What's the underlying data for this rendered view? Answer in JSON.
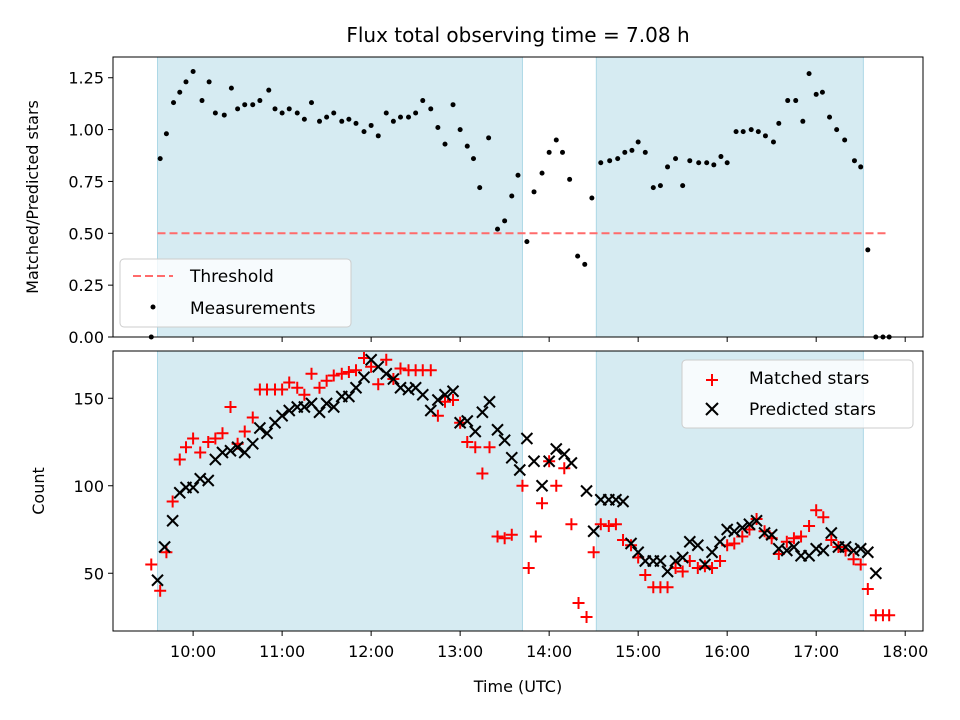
{
  "chart_data": [
    {
      "type": "scatter",
      "title": "Flux total observing time = 7.08 h",
      "xlabel": "",
      "ylabel": "Matched/Predicted stars",
      "x_unit": "hours (UTC)",
      "xlim": [
        9.1,
        18.2
      ],
      "ylim": [
        0,
        1.35
      ],
      "yticks": [
        0.0,
        0.25,
        0.5,
        0.75,
        1.0,
        1.25
      ],
      "ytick_labels": [
        "0.00",
        "0.25",
        "0.50",
        "0.75",
        "1.00",
        "1.25"
      ],
      "shaded_spans": [
        {
          "start": 9.6,
          "end": 13.7,
          "color": "#add8e6"
        },
        {
          "start": 14.53,
          "end": 17.53,
          "color": "#add8e6"
        }
      ],
      "legend": {
        "location": "lower-left",
        "entries": [
          "Threshold",
          "Measurements"
        ]
      },
      "series": [
        {
          "name": "Threshold",
          "kind": "dashed-line",
          "color": "#ff6b6b",
          "x": [
            9.6,
            17.8
          ],
          "y": [
            0.5,
            0.5
          ]
        },
        {
          "name": "Measurements",
          "kind": "dots",
          "color": "#000000",
          "x": [
            9.53,
            9.63,
            9.7,
            9.78,
            9.85,
            9.92,
            10.0,
            10.1,
            10.18,
            10.25,
            10.35,
            10.43,
            10.5,
            10.58,
            10.67,
            10.75,
            10.85,
            10.92,
            11.0,
            11.08,
            11.17,
            11.25,
            11.33,
            11.42,
            11.5,
            11.58,
            11.67,
            11.75,
            11.83,
            11.92,
            12.0,
            12.08,
            12.17,
            12.25,
            12.33,
            12.42,
            12.5,
            12.58,
            12.67,
            12.75,
            12.83,
            12.92,
            13.0,
            13.08,
            13.15,
            13.22,
            13.32,
            13.42,
            13.5,
            13.58,
            13.65,
            13.75,
            13.83,
            13.92,
            14.0,
            14.08,
            14.15,
            14.23,
            14.32,
            14.4,
            14.48,
            14.58,
            14.68,
            14.77,
            14.85,
            14.93,
            15.0,
            15.08,
            15.17,
            15.25,
            15.33,
            15.42,
            15.5,
            15.58,
            15.68,
            15.77,
            15.85,
            15.93,
            16.0,
            16.1,
            16.18,
            16.27,
            16.35,
            16.43,
            16.52,
            16.58,
            16.68,
            16.77,
            16.85,
            16.92,
            17.0,
            17.07,
            17.15,
            17.23,
            17.32,
            17.43,
            17.5,
            17.58,
            17.67,
            17.75,
            17.82
          ],
          "y": [
            0.0,
            0.86,
            0.98,
            1.13,
            1.18,
            1.23,
            1.28,
            1.14,
            1.23,
            1.08,
            1.07,
            1.2,
            1.1,
            1.12,
            1.12,
            1.14,
            1.19,
            1.1,
            1.08,
            1.1,
            1.08,
            1.05,
            1.13,
            1.04,
            1.06,
            1.08,
            1.04,
            1.05,
            1.03,
            0.99,
            1.02,
            0.97,
            1.08,
            1.04,
            1.06,
            1.06,
            1.08,
            1.14,
            1.1,
            1.01,
            0.93,
            1.12,
            1.0,
            0.92,
            0.86,
            0.72,
            0.96,
            0.52,
            0.56,
            0.68,
            0.78,
            0.46,
            0.7,
            0.79,
            0.89,
            0.95,
            0.89,
            0.76,
            0.39,
            0.35,
            0.67,
            0.84,
            0.85,
            0.86,
            0.89,
            0.9,
            0.94,
            0.89,
            0.72,
            0.73,
            0.82,
            0.86,
            0.73,
            0.85,
            0.84,
            0.84,
            0.83,
            0.87,
            0.84,
            0.99,
            0.99,
            1.0,
            0.99,
            0.97,
            0.94,
            1.03,
            1.14,
            1.14,
            1.04,
            1.27,
            1.17,
            1.18,
            1.06,
            1.0,
            0.95,
            0.85,
            0.82,
            0.42,
            0.0,
            0.0,
            0.0
          ]
        }
      ]
    },
    {
      "type": "scatter",
      "title": "",
      "xlabel": "Time (UTC)",
      "ylabel": "Count",
      "x_unit": "hours (UTC)",
      "xlim": [
        9.1,
        18.2
      ],
      "ylim": [
        17,
        177
      ],
      "xticks": [
        10,
        11,
        12,
        13,
        14,
        15,
        16,
        17,
        18
      ],
      "xtick_labels": [
        "10:00",
        "11:00",
        "12:00",
        "13:00",
        "14:00",
        "15:00",
        "16:00",
        "17:00",
        "18:00"
      ],
      "yticks": [
        50,
        100,
        150
      ],
      "ytick_labels": [
        "50",
        "100",
        "150"
      ],
      "shaded_spans": [
        {
          "start": 9.6,
          "end": 13.7,
          "color": "#add8e6"
        },
        {
          "start": 14.53,
          "end": 17.53,
          "color": "#add8e6"
        }
      ],
      "legend": {
        "location": "top-right",
        "entries": [
          "Matched stars",
          "Predicted stars"
        ]
      },
      "series": [
        {
          "name": "Matched stars",
          "marker": "+",
          "color": "#ff0000",
          "x": [
            9.53,
            9.63,
            9.7,
            9.77,
            9.85,
            9.92,
            10.0,
            10.08,
            10.17,
            10.25,
            10.33,
            10.42,
            10.5,
            10.58,
            10.67,
            10.75,
            10.83,
            10.92,
            11.0,
            11.08,
            11.17,
            11.25,
            11.33,
            11.42,
            11.5,
            11.58,
            11.67,
            11.75,
            11.83,
            11.92,
            12.0,
            12.08,
            12.17,
            12.25,
            12.33,
            12.42,
            12.5,
            12.58,
            12.67,
            12.75,
            12.83,
            12.92,
            13.0,
            13.08,
            13.17,
            13.25,
            13.33,
            13.42,
            13.5,
            13.58,
            13.7,
            13.77,
            13.85,
            13.92,
            14.0,
            14.08,
            14.17,
            14.25,
            14.33,
            14.42,
            14.5,
            14.58,
            14.67,
            14.75,
            14.83,
            14.92,
            15.0,
            15.08,
            15.17,
            15.25,
            15.33,
            15.42,
            15.5,
            15.58,
            15.67,
            15.75,
            15.83,
            15.92,
            16.0,
            16.08,
            16.17,
            16.25,
            16.33,
            16.42,
            16.5,
            16.58,
            16.67,
            16.75,
            16.83,
            16.92,
            17.0,
            17.08,
            17.17,
            17.25,
            17.33,
            17.42,
            17.5,
            17.58,
            17.67,
            17.75,
            17.82
          ],
          "y": [
            55,
            40,
            62,
            91,
            115,
            122,
            127,
            119,
            125,
            127,
            130,
            145,
            124,
            131,
            139,
            155,
            155,
            155,
            155,
            159,
            156,
            152,
            164,
            156,
            160,
            163,
            164,
            165,
            166,
            173,
            168,
            158,
            172,
            161,
            167,
            166,
            166,
            166,
            166,
            140,
            148,
            149,
            136,
            125,
            122,
            107,
            122,
            71,
            70,
            72,
            100,
            53,
            71,
            90,
            114,
            100,
            110,
            78,
            33,
            25,
            62,
            78,
            77,
            78,
            69,
            66,
            59,
            49,
            42,
            42,
            42,
            53,
            51,
            57,
            53,
            54,
            53,
            57,
            66,
            67,
            71,
            75,
            81,
            74,
            70,
            61,
            68,
            70,
            71,
            77,
            86,
            82,
            69,
            65,
            63,
            58,
            55,
            41,
            26,
            26,
            26
          ]
        },
        {
          "name": "Predicted stars",
          "marker": "x",
          "color": "#000000",
          "x": [
            9.6,
            9.68,
            9.77,
            9.85,
            9.92,
            10.0,
            10.08,
            10.17,
            10.25,
            10.33,
            10.42,
            10.5,
            10.58,
            10.67,
            10.75,
            10.83,
            10.92,
            11.0,
            11.08,
            11.17,
            11.25,
            11.33,
            11.42,
            11.5,
            11.58,
            11.67,
            11.75,
            11.83,
            11.92,
            12.0,
            12.08,
            12.17,
            12.25,
            12.33,
            12.42,
            12.5,
            12.58,
            12.67,
            12.75,
            12.83,
            12.92,
            13.0,
            13.08,
            13.17,
            13.25,
            13.33,
            13.42,
            13.5,
            13.58,
            13.67,
            13.75,
            13.83,
            13.92,
            14.0,
            14.08,
            14.17,
            14.25,
            14.42,
            14.5,
            14.58,
            14.67,
            14.75,
            14.83,
            14.92,
            15.0,
            15.08,
            15.17,
            15.25,
            15.33,
            15.42,
            15.5,
            15.58,
            15.67,
            15.75,
            15.83,
            15.92,
            16.0,
            16.08,
            16.17,
            16.25,
            16.33,
            16.42,
            16.5,
            16.58,
            16.67,
            16.75,
            16.83,
            16.92,
            17.0,
            17.08,
            17.17,
            17.25,
            17.33,
            17.42,
            17.5,
            17.58,
            17.67
          ],
          "y": [
            46,
            65,
            80,
            96,
            99,
            99,
            104,
            103,
            115,
            119,
            120,
            122,
            119,
            124,
            133,
            130,
            136,
            140,
            143,
            145,
            145,
            147,
            142,
            147,
            145,
            151,
            151,
            156,
            162,
            172,
            168,
            164,
            161,
            156,
            155,
            156,
            152,
            143,
            149,
            152,
            154,
            136,
            137,
            131,
            142,
            148,
            132,
            126,
            116,
            109,
            127,
            114,
            100,
            114,
            121,
            118,
            113,
            97,
            74,
            92,
            92,
            92,
            91,
            67,
            62,
            57,
            57,
            57,
            51,
            57,
            59,
            68,
            66,
            55,
            62,
            68,
            75,
            74,
            76,
            78,
            80,
            73,
            72,
            64,
            63,
            65,
            60,
            60,
            64,
            63,
            73,
            65,
            65,
            63,
            64,
            62,
            50
          ]
        }
      ]
    }
  ]
}
